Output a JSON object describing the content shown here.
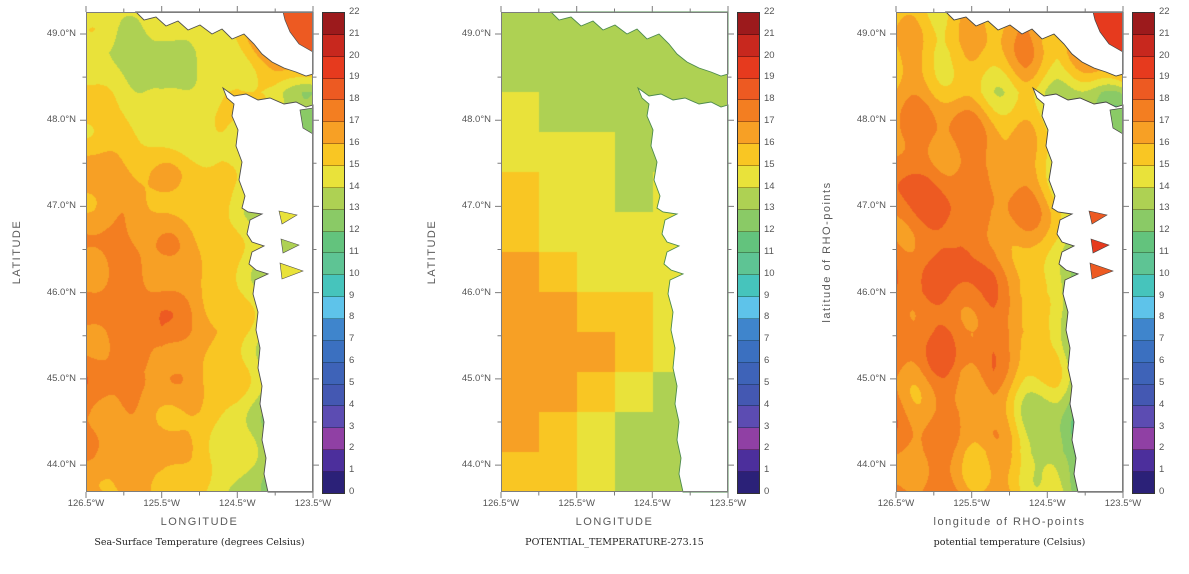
{
  "figure": {
    "background_color": "#ffffff",
    "frame_color": "#7d7d7d",
    "tick_color": "#7d7d7d",
    "label_color": "#555555",
    "land_color": "#ffffff"
  },
  "colorbar": {
    "min": 0,
    "max": 22,
    "labels": [
      "0",
      "1",
      "2",
      "3",
      "4",
      "5",
      "6",
      "7",
      "8",
      "9",
      "10",
      "11",
      "12",
      "13",
      "14",
      "15",
      "16",
      "17",
      "18",
      "19",
      "20",
      "21",
      "22"
    ],
    "palette_low_to_high": [
      "#2b2178",
      "#4c2f9c",
      "#9040a4",
      "#5c4cb2",
      "#4458b2",
      "#3e63b8",
      "#3b70c0",
      "#3f85cc",
      "#5ec3ea",
      "#46c4bc",
      "#5ec494",
      "#63c37d",
      "#8aca66",
      "#aed153",
      "#e9e23a",
      "#f9c623",
      "#f7a025",
      "#f37e21",
      "#ed5a22",
      "#e63a1e",
      "#c8281e",
      "#9c1a1c"
    ]
  },
  "panels": [
    {
      "id": "sea-surface-temperature",
      "y_axis_title": "LATITUDE",
      "x_axis_title": "LONGITUDE",
      "caption": "Sea-Surface Temperature (degrees Celsius)",
      "y_tick_labels": [
        "49.0°N",
        "48.0°N",
        "47.0°N",
        "46.0°N",
        "45.0°N",
        "44.0°N"
      ],
      "x_tick_labels": [
        "126.5°W",
        "125.5°W",
        "124.5°W",
        "123.5°W"
      ],
      "overlay_values": {
        "georgia_strait": 18.6,
        "puget_sound": 12.4,
        "coastal_bays": [
          14.3,
          13.6,
          14.6
        ]
      }
    },
    {
      "id": "potential-temperature-kelvin-offset",
      "y_axis_title": "LATITUDE",
      "x_axis_title": "LONGITUDE",
      "caption": "POTENTIAL_TEMPERATURE-273.15",
      "y_tick_labels": [
        "49.0°N",
        "48.0°N",
        "47.0°N",
        "46.0°N",
        "45.0°N",
        "44.0°N"
      ],
      "x_tick_labels": [
        "126.5°W",
        "125.5°W",
        "124.5°W",
        "123.5°W"
      ],
      "overlay_values": null
    },
    {
      "id": "potential-temperature-rho-points",
      "y_axis_title": "latitude of RHO-points",
      "x_axis_title": "longitude of RHO-points",
      "caption": "potential temperature (Celsius)",
      "y_tick_labels": [
        "49.0°N",
        "48.0°N",
        "47.0°N",
        "46.0°N",
        "45.0°N",
        "44.0°N"
      ],
      "x_tick_labels": [
        "126.5°W",
        "125.5°W",
        "124.5°W",
        "123.5°W"
      ],
      "overlay_values": {
        "georgia_strait": 19.4,
        "puget_sound": 12.6,
        "coastal_bays": [
          18.6,
          19.2,
          18.8
        ]
      }
    }
  ],
  "chart_data": [
    {
      "type": "heatmap",
      "caption": "Sea-Surface Temperature (degrees Celsius)",
      "xlabel": "LONGITUDE",
      "ylabel": "LATITUDE",
      "value_units": "degrees Celsius",
      "colorbar_range": [
        0,
        22
      ],
      "lat_ticks_deg_n": [
        49.0,
        48.0,
        47.0,
        46.0,
        45.0,
        44.0
      ],
      "lon_ticks_deg_w": [
        126.5,
        125.5,
        124.5,
        123.5
      ],
      "grid_lats_deg_n": [
        49.26,
        48.79,
        48.33,
        47.86,
        47.4,
        46.94,
        46.47,
        46.01,
        45.54,
        45.08,
        44.61,
        44.15,
        43.69
      ],
      "grid_lons_deg_w": [
        126.5,
        126.0,
        125.5,
        125.0,
        124.5,
        124.0,
        123.5
      ],
      "values": [
        [
          14.4,
          14.4,
          14.2,
          14.4,
          15.3,
          18.3,
          19.3
        ],
        [
          14.6,
          13.4,
          13.2,
          14.1,
          14.8,
          17.4,
          18.6
        ],
        [
          15.1,
          14.6,
          13.6,
          14.4,
          15.2,
          14.4,
          13.1
        ],
        [
          15.6,
          15.3,
          14.7,
          14.4,
          14.9,
          13.9,
          12.9
        ],
        [
          16.4,
          16.2,
          15.7,
          15.4,
          14.7,
          13.9,
          13.4
        ],
        [
          16.6,
          16.8,
          16.3,
          15.7,
          14.7,
          13.4,
          12.9
        ],
        [
          16.8,
          17.2,
          16.8,
          16.1,
          14.9,
          13.7,
          14.4
        ],
        [
          17.1,
          17.5,
          17.2,
          16.4,
          15.1,
          13.9,
          12.9
        ],
        [
          16.9,
          17.6,
          18.2,
          16.5,
          15.4,
          14.1,
          12.7
        ],
        [
          17.4,
          17.2,
          16.7,
          16.3,
          15.2,
          13.4,
          12.4
        ],
        [
          17.5,
          16.8,
          16.5,
          15.9,
          14.7,
          12.9,
          12.2
        ],
        [
          16.6,
          16.5,
          16.4,
          15.4,
          14.4,
          12.7,
          12.3
        ],
        [
          16.4,
          16.2,
          16.1,
          15.1,
          14.1,
          12.9,
          12.4
        ]
      ]
    },
    {
      "type": "heatmap",
      "caption": "POTENTIAL_TEMPERATURE-273.15",
      "xlabel": "LONGITUDE",
      "ylabel": "LATITUDE",
      "value_units": "degrees Celsius",
      "colorbar_range": [
        0,
        22
      ],
      "lat_ticks_deg_n": [
        49.0,
        48.0,
        47.0,
        46.0,
        45.0,
        44.0
      ],
      "lon_ticks_deg_w": [
        126.5,
        125.5,
        124.5,
        123.5
      ],
      "grid_lats_deg_n": [
        49.02,
        48.56,
        48.09,
        47.63,
        47.16,
        46.7,
        46.24,
        45.77,
        45.31,
        44.84,
        44.38,
        43.92
      ],
      "grid_lons_deg_w": [
        126.25,
        125.75,
        125.25,
        124.75,
        124.25,
        123.75
      ],
      "values": [
        [
          13.4,
          13.4,
          13.2,
          13.2,
          13.2,
          13.2
        ],
        [
          13.4,
          13.4,
          13.2,
          13.2,
          13.2,
          13.2
        ],
        [
          14.4,
          13.4,
          13.4,
          13.2,
          13.2,
          13.2
        ],
        [
          14.5,
          14.3,
          14.3,
          13.3,
          13.3,
          13.3
        ],
        [
          15.4,
          14.6,
          14.6,
          13.4,
          14.4,
          14.4
        ],
        [
          15.6,
          14.7,
          14.7,
          14.6,
          14.6,
          14.6
        ],
        [
          16.4,
          15.5,
          14.7,
          14.7,
          14.7,
          14.7
        ],
        [
          16.6,
          16.6,
          15.6,
          15.4,
          14.8,
          14.8
        ],
        [
          16.7,
          16.7,
          16.6,
          15.5,
          14.8,
          14.8
        ],
        [
          16.7,
          16.7,
          15.6,
          14.8,
          13.6,
          13.6
        ],
        [
          16.7,
          15.7,
          14.8,
          13.7,
          13.3,
          13.3
        ],
        [
          15.7,
          15.6,
          14.8,
          13.7,
          13.2,
          13.2
        ]
      ]
    },
    {
      "type": "heatmap",
      "caption": "potential temperature (Celsius)",
      "xlabel": "longitude of RHO-points",
      "ylabel": "latitude of RHO-points",
      "value_units": "degrees Celsius",
      "colorbar_range": [
        0,
        22
      ],
      "lat_ticks_deg_n": [
        49.0,
        48.0,
        47.0,
        46.0,
        45.0,
        44.0
      ],
      "lon_ticks_deg_w": [
        126.5,
        125.5,
        124.5,
        123.5
      ],
      "grid_lats_deg_n": [
        49.26,
        48.79,
        48.33,
        47.86,
        47.4,
        46.94,
        46.47,
        46.01,
        45.54,
        45.08,
        44.61,
        44.15,
        43.69
      ],
      "grid_lons_deg_w": [
        126.5,
        126.07,
        125.64,
        125.21,
        124.79,
        124.36,
        123.93,
        123.5
      ],
      "values": [
        [
          15.4,
          15.6,
          15.8,
          16.4,
          17.3,
          16.4,
          18.4,
          19.4
        ],
        [
          15.6,
          15.4,
          15.3,
          15.6,
          16.4,
          15.6,
          17.4,
          18.7
        ],
        [
          16.4,
          16.2,
          15.6,
          15.3,
          14.9,
          13.9,
          13.6,
          13.4
        ],
        [
          17.2,
          17.4,
          16.8,
          16.4,
          15.6,
          14.7,
          13.2,
          12.4
        ],
        [
          17.5,
          17.8,
          17.6,
          17.2,
          16.4,
          15.4,
          12.9,
          11.4
        ],
        [
          17.4,
          18.3,
          17.7,
          16.8,
          16.9,
          15.4,
          12.4,
          10.4
        ],
        [
          17.6,
          17.5,
          18.4,
          17.5,
          16.4,
          14.9,
          11.4,
          10.3
        ],
        [
          17.8,
          18.5,
          17.6,
          17.4,
          15.4,
          14.4,
          11.0,
          10.2
        ],
        [
          17.5,
          17.4,
          18.2,
          17.8,
          16.4,
          14.7,
          11.4,
          10.3
        ],
        [
          17.4,
          17.6,
          16.8,
          17.4,
          15.4,
          14.4,
          11.7,
          10.4
        ],
        [
          17.3,
          16.8,
          17.2,
          16.4,
          14.7,
          13.4,
          11.2,
          10.4
        ],
        [
          16.8,
          17.4,
          16.6,
          15.7,
          14.4,
          12.4,
          11.4,
          10.7
        ],
        [
          16.9,
          17.2,
          16.8,
          16.9,
          15.4,
          13.9,
          12.0,
          11.0
        ]
      ]
    }
  ]
}
